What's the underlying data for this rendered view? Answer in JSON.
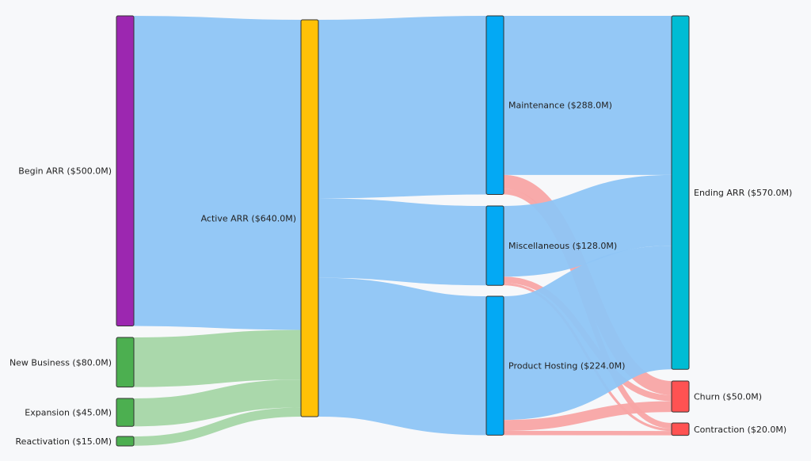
{
  "chart_data": {
    "type": "sankey",
    "units": "$M",
    "nodes": [
      {
        "id": "begin",
        "label": "Begin ARR ($500.0M)",
        "value": 500,
        "color": "#9c27b0"
      },
      {
        "id": "newbiz",
        "label": "New Business ($80.0M)",
        "value": 80,
        "color": "#4caf50"
      },
      {
        "id": "expansion",
        "label": "Expansion ($45.0M)",
        "value": 45,
        "color": "#4caf50"
      },
      {
        "id": "reactivation",
        "label": "Reactivation ($15.0M)",
        "value": 15,
        "color": "#4caf50"
      },
      {
        "id": "active",
        "label": "Active ARR ($640.0M)",
        "value": 640,
        "color": "#ffc107"
      },
      {
        "id": "maintenance",
        "label": "Maintenance ($288.0M)",
        "value": 288,
        "color": "#03a9f4"
      },
      {
        "id": "misc",
        "label": "Miscellaneous ($128.0M)",
        "value": 128,
        "color": "#03a9f4"
      },
      {
        "id": "hosting",
        "label": "Product Hosting ($224.0M)",
        "value": 224,
        "color": "#03a9f4"
      },
      {
        "id": "ending",
        "label": "Ending ARR ($570.0M)",
        "value": 570,
        "color": "#00bcd4"
      },
      {
        "id": "churn",
        "label": "Churn ($50.0M)",
        "value": 50,
        "color": "#ff5252"
      },
      {
        "id": "contraction",
        "label": "Contraction ($20.0M)",
        "value": 20,
        "color": "#ff5252"
      }
    ],
    "links": [
      {
        "source": "begin",
        "target": "active",
        "value": 500,
        "color": "#8ec5f5"
      },
      {
        "source": "newbiz",
        "target": "active",
        "value": 80,
        "color": "#a5d6a7"
      },
      {
        "source": "expansion",
        "target": "active",
        "value": 45,
        "color": "#a5d6a7"
      },
      {
        "source": "reactivation",
        "target": "active",
        "value": 15,
        "color": "#a5d6a7"
      },
      {
        "source": "active",
        "target": "maintenance",
        "value": 288,
        "color": "#8ec5f5"
      },
      {
        "source": "active",
        "target": "misc",
        "value": 128,
        "color": "#8ec5f5"
      },
      {
        "source": "active",
        "target": "hosting",
        "value": 224,
        "color": "#8ec5f5"
      },
      {
        "source": "maintenance",
        "target": "ending",
        "value": 256.5,
        "color": "#8ec5f5"
      },
      {
        "source": "maintenance",
        "target": "churn",
        "value": 22.5,
        "color": "#f8a5a5"
      },
      {
        "source": "maintenance",
        "target": "contraction",
        "value": 9,
        "color": "#f8a5a5"
      },
      {
        "source": "misc",
        "target": "ending",
        "value": 114,
        "color": "#8ec5f5"
      },
      {
        "source": "misc",
        "target": "churn",
        "value": 10,
        "color": "#f8a5a5"
      },
      {
        "source": "misc",
        "target": "contraction",
        "value": 4,
        "color": "#f8a5a5"
      },
      {
        "source": "hosting",
        "target": "ending",
        "value": 199.5,
        "color": "#8ec5f5"
      },
      {
        "source": "hosting",
        "target": "churn",
        "value": 17.5,
        "color": "#f8a5a5"
      },
      {
        "source": "hosting",
        "target": "contraction",
        "value": 7,
        "color": "#f8a5a5"
      }
    ]
  }
}
